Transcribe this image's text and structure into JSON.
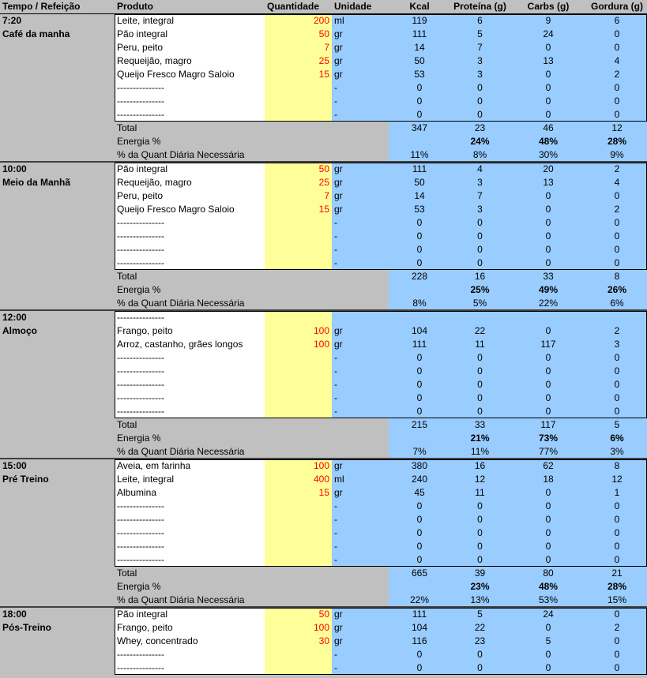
{
  "header": [
    "Tempo / Refeição",
    "Produto",
    "Quantidade",
    "Unidade",
    "Kcal",
    "Proteína (g)",
    "Carbs (g)",
    "Gordura (g)"
  ],
  "meals": [
    {
      "time": "7:20",
      "name": "Café da manha",
      "rows": [
        [
          "Leite, integral",
          200,
          "ml",
          119,
          6,
          9,
          6
        ],
        [
          "Pão integral",
          50,
          "gr",
          111,
          5,
          24,
          0
        ],
        [
          "Peru, peito",
          7,
          "gr",
          14,
          7,
          0,
          0
        ],
        [
          "Requeijão, magro",
          25,
          "gr",
          50,
          3,
          13,
          4
        ],
        [
          "Queijo Fresco Magro Saloio",
          15,
          "gr",
          53,
          3,
          0,
          2
        ],
        [
          "---------------",
          null,
          "-",
          0,
          0,
          0,
          0
        ],
        [
          "---------------",
          null,
          "-",
          0,
          0,
          0,
          0
        ],
        [
          "---------------",
          null,
          "-",
          0,
          0,
          0,
          0
        ]
      ],
      "total": {
        "label": "Total",
        "values": [
          347,
          23,
          46,
          12
        ]
      },
      "energy": {
        "label": "Energia %",
        "values": [
          null,
          "24%",
          "48%",
          "28%"
        ]
      },
      "pct": {
        "label": "% da Quant Diária Necessária",
        "values": [
          "11%",
          "8%",
          "30%",
          "9%"
        ]
      }
    },
    {
      "time": "10:00",
      "name": "Meio da Manhã",
      "rows": [
        [
          "Pão integral",
          50,
          "gr",
          111,
          4,
          20,
          2
        ],
        [
          "Requeijão, magro",
          25,
          "gr",
          50,
          3,
          13,
          4
        ],
        [
          "Peru, peito",
          7,
          "gr",
          14,
          7,
          0,
          0
        ],
        [
          "Queijo Fresco Magro Saloio",
          15,
          "gr",
          53,
          3,
          0,
          2
        ],
        [
          "---------------",
          null,
          "-",
          0,
          0,
          0,
          0
        ],
        [
          "---------------",
          null,
          "-",
          0,
          0,
          0,
          0
        ],
        [
          "---------------",
          null,
          "-",
          0,
          0,
          0,
          0
        ],
        [
          "---------------",
          null,
          "-",
          0,
          0,
          0,
          0
        ]
      ],
      "total": {
        "label": "Total",
        "values": [
          228,
          16,
          33,
          8
        ]
      },
      "energy": {
        "label": "Energia %",
        "values": [
          null,
          "25%",
          "49%",
          "26%"
        ]
      },
      "pct": {
        "label": "% da Quant Diária Necessária",
        "values": [
          "8%",
          "5%",
          "22%",
          "6%"
        ]
      }
    },
    {
      "time": "12:00",
      "name": "Almoço",
      "rows": [
        [
          "---------------",
          null,
          null,
          null,
          null,
          null,
          null
        ],
        [
          "Frango, peito",
          100,
          "gr",
          104,
          22,
          0,
          2
        ],
        [
          "Arroz, castanho, grães longos",
          100,
          "gr",
          111,
          11,
          117,
          3
        ],
        [
          "---------------",
          null,
          "-",
          0,
          0,
          0,
          0
        ],
        [
          "---------------",
          null,
          "-",
          0,
          0,
          0,
          0
        ],
        [
          "---------------",
          null,
          "-",
          0,
          0,
          0,
          0
        ],
        [
          "---------------",
          null,
          "-",
          0,
          0,
          0,
          0
        ],
        [
          "---------------",
          null,
          "-",
          0,
          0,
          0,
          0
        ]
      ],
      "total": {
        "label": "Total",
        "values": [
          215,
          33,
          117,
          5
        ]
      },
      "energy": {
        "label": "Energia %",
        "values": [
          null,
          "21%",
          "73%",
          "6%"
        ]
      },
      "pct": {
        "label": "% da Quant Diária Necessária",
        "values": [
          "7%",
          "11%",
          "77%",
          "3%"
        ]
      }
    },
    {
      "time": "15:00",
      "name": "Pré Treino",
      "rows": [
        [
          "Aveia, em farinha",
          100,
          "gr",
          380,
          16,
          62,
          8
        ],
        [
          "Leite, integral",
          400,
          "ml",
          240,
          12,
          18,
          12
        ],
        [
          "Albumina",
          15,
          "gr",
          45,
          11,
          0,
          1
        ],
        [
          "---------------",
          null,
          "-",
          0,
          0,
          0,
          0
        ],
        [
          "---------------",
          null,
          "-",
          0,
          0,
          0,
          0
        ],
        [
          "---------------",
          null,
          "-",
          0,
          0,
          0,
          0
        ],
        [
          "---------------",
          null,
          "-",
          0,
          0,
          0,
          0
        ],
        [
          "---------------",
          null,
          "-",
          0,
          0,
          0,
          0
        ]
      ],
      "total": {
        "label": "Total",
        "values": [
          665,
          39,
          80,
          21
        ]
      },
      "energy": {
        "label": "Energia %",
        "values": [
          null,
          "23%",
          "48%",
          "28%"
        ]
      },
      "pct": {
        "label": "% da Quant Diária Necessária",
        "values": [
          "22%",
          "13%",
          "53%",
          "15%"
        ]
      }
    },
    {
      "time": "18:00",
      "name": "Pós-Treino",
      "rows": [
        [
          "Pão integral",
          50,
          "gr",
          111,
          5,
          24,
          0
        ],
        [
          "Frango, peito",
          100,
          "gr",
          104,
          22,
          0,
          2
        ],
        [
          "Whey, concentrado",
          30,
          "gr",
          116,
          23,
          5,
          0
        ],
        [
          "---------------",
          null,
          "-",
          0,
          0,
          0,
          0
        ],
        [
          "---------------",
          null,
          "-",
          0,
          0,
          0,
          0
        ]
      ]
    }
  ]
}
